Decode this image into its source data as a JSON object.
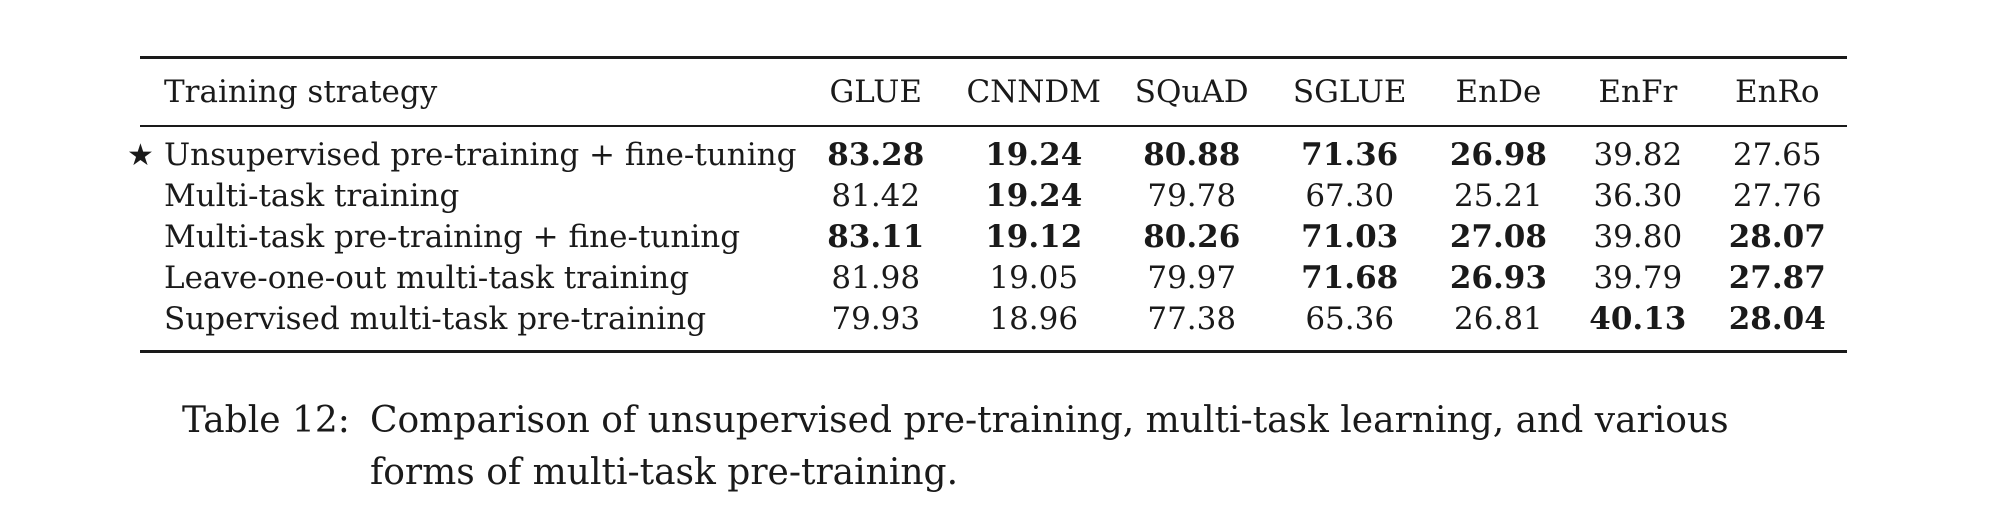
{
  "table": {
    "columns": [
      "Training strategy",
      "GLUE",
      "CNNDM",
      "SQuAD",
      "SGLUE",
      "EnDe",
      "EnFr",
      "EnRo"
    ],
    "rows": [
      {
        "marker": "★",
        "strategy": "Unsupervised pre-training + fine-tuning",
        "values": [
          "83.28",
          "19.24",
          "80.88",
          "71.36",
          "26.98",
          "39.82",
          "27.65"
        ],
        "bold": [
          true,
          true,
          true,
          true,
          true,
          false,
          false
        ]
      },
      {
        "marker": "",
        "strategy": "Multi-task training",
        "values": [
          "81.42",
          "19.24",
          "79.78",
          "67.30",
          "25.21",
          "36.30",
          "27.76"
        ],
        "bold": [
          false,
          true,
          false,
          false,
          false,
          false,
          false
        ]
      },
      {
        "marker": "",
        "strategy": "Multi-task pre-training + fine-tuning",
        "values": [
          "83.11",
          "19.12",
          "80.26",
          "71.03",
          "27.08",
          "39.80",
          "28.07"
        ],
        "bold": [
          true,
          true,
          true,
          true,
          true,
          false,
          true
        ]
      },
      {
        "marker": "",
        "strategy": "Leave-one-out multi-task training",
        "values": [
          "81.98",
          "19.05",
          "79.97",
          "71.68",
          "26.93",
          "39.79",
          "27.87"
        ],
        "bold": [
          false,
          false,
          false,
          true,
          true,
          false,
          true
        ]
      },
      {
        "marker": "",
        "strategy": "Supervised multi-task pre-training",
        "values": [
          "79.93",
          "18.96",
          "77.38",
          "65.36",
          "26.81",
          "40.13",
          "28.04"
        ],
        "bold": [
          false,
          false,
          false,
          false,
          false,
          true,
          true
        ]
      }
    ]
  },
  "caption": {
    "label": "Table 12:",
    "text": "Comparison of unsupervised pre-training, multi-task learning, and various forms of multi-task pre-training."
  }
}
